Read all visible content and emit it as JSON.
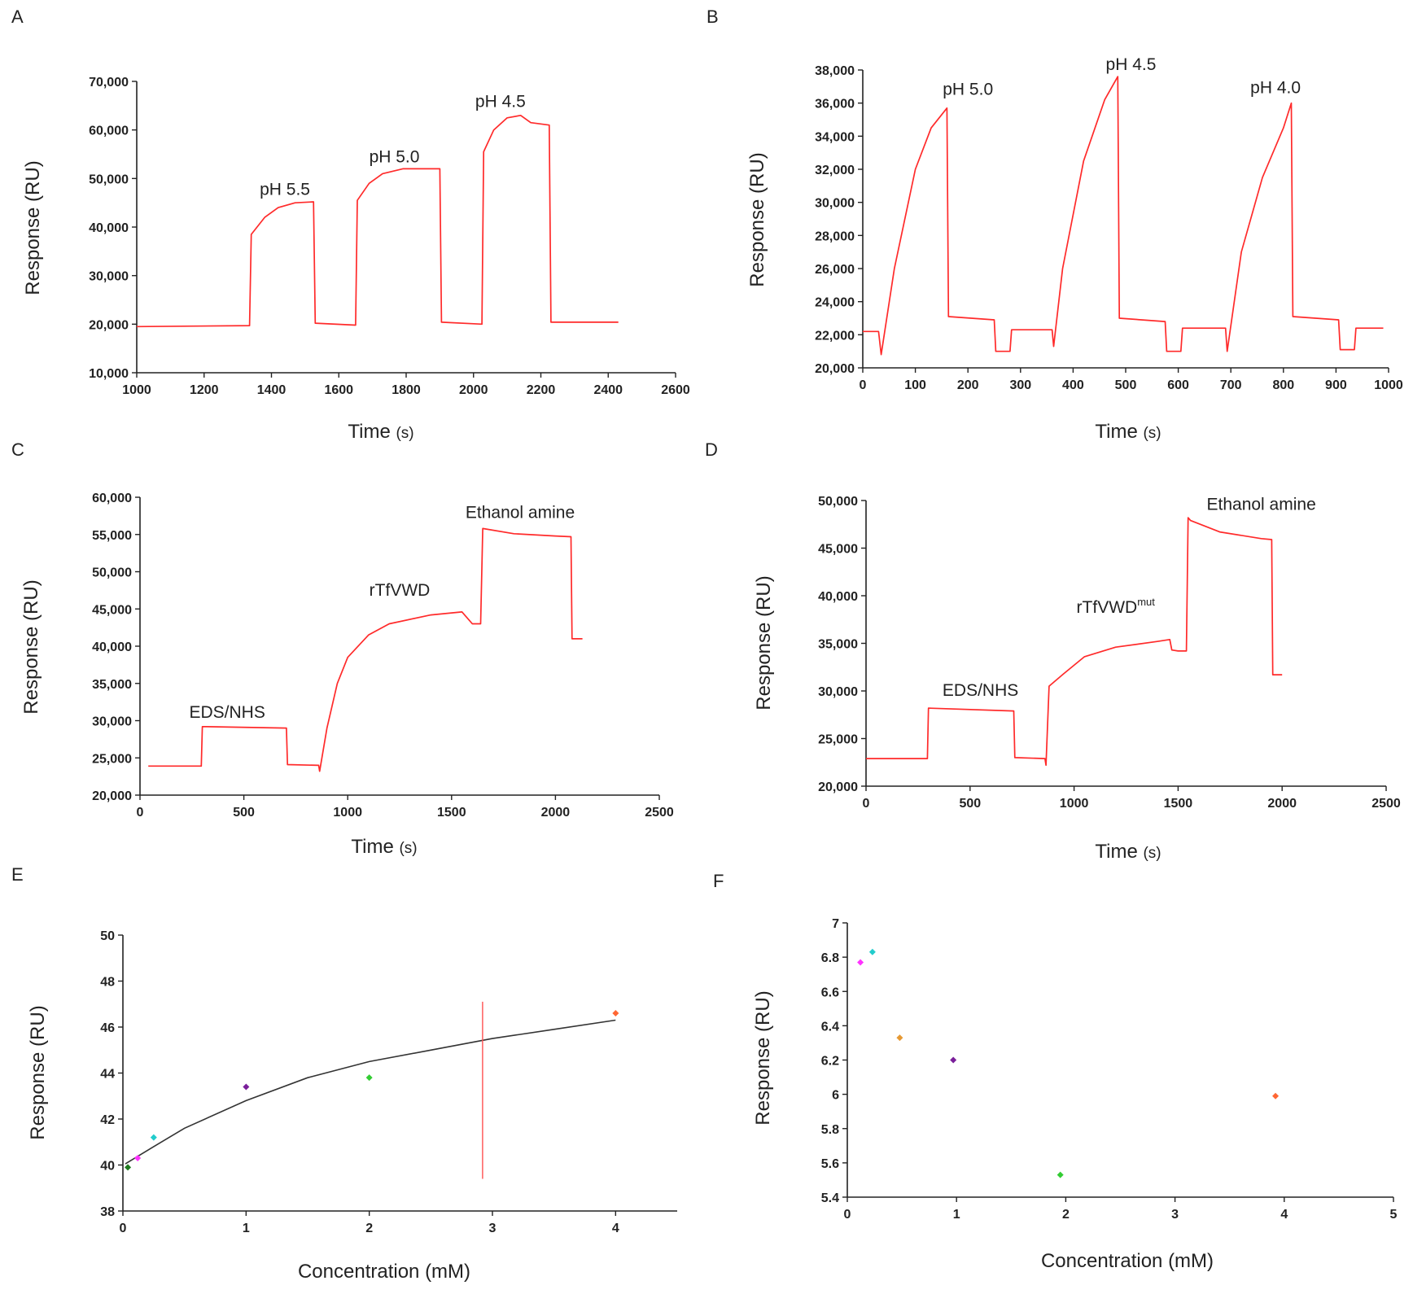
{
  "figure": {
    "panel_letters": [
      "A",
      "B",
      "C",
      "D",
      "E",
      "F"
    ]
  },
  "colors": {
    "trace": "#ff2a2a",
    "axis": "#222222",
    "fit": "#333333",
    "marker_line": "#ff5050"
  },
  "chart_data": [
    {
      "panel": "A",
      "type": "line",
      "title": "",
      "xlabel": "Time",
      "xunit": "(s)",
      "ylabel": "Response (RU)",
      "xlim": [
        1000,
        2600
      ],
      "ylim": [
        10000,
        70000
      ],
      "xticks": [
        1000,
        1200,
        1400,
        1600,
        1800,
        2000,
        2200,
        2400,
        2600
      ],
      "yticks": [
        10000,
        20000,
        30000,
        40000,
        50000,
        60000,
        70000
      ],
      "yticklabels": [
        "10,000",
        "20,000",
        "30,000",
        "40,000",
        "50,000",
        "60,000",
        "70,000"
      ],
      "annotations": [
        {
          "text": "pH 5.5",
          "x": 1440,
          "y": 46600
        },
        {
          "text": "pH 5.0",
          "x": 1765,
          "y": 53300
        },
        {
          "text": "pH 4.5",
          "x": 2080,
          "y": 64700
        }
      ],
      "series": [
        {
          "name": "sensorgram",
          "x": [
            1000,
            1335,
            1340,
            1380,
            1420,
            1470,
            1525,
            1530,
            1650,
            1655,
            1690,
            1730,
            1790,
            1900,
            1905,
            2025,
            2030,
            2060,
            2100,
            2140,
            2170,
            2225,
            2230,
            2430
          ],
          "y": [
            19500,
            19700,
            38500,
            42000,
            44000,
            45000,
            45200,
            20200,
            19800,
            45500,
            49000,
            51000,
            52000,
            52000,
            20400,
            20000,
            55500,
            60000,
            62500,
            63000,
            61500,
            61000,
            20400,
            20400
          ]
        }
      ]
    },
    {
      "panel": "B",
      "type": "line",
      "title": "",
      "xlabel": "Time",
      "xunit": "(s)",
      "ylabel": "Response (RU)",
      "xlim": [
        0,
        1000
      ],
      "ylim": [
        20000,
        38000
      ],
      "xticks": [
        0,
        100,
        200,
        300,
        400,
        500,
        600,
        700,
        800,
        900,
        1000
      ],
      "yticks": [
        20000,
        22000,
        24000,
        26000,
        28000,
        30000,
        32000,
        34000,
        36000,
        38000
      ],
      "yticklabels": [
        "20,000",
        "22,000",
        "24,000",
        "26,000",
        "28,000",
        "30,000",
        "32,000",
        "34,000",
        "36,000",
        "38,000"
      ],
      "annotations": [
        {
          "text": "pH 5.0",
          "x": 200,
          "y": 36500
        },
        {
          "text": "pH 4.5",
          "x": 510,
          "y": 38000
        },
        {
          "text": "pH 4.0",
          "x": 785,
          "y": 36600
        }
      ],
      "series": [
        {
          "name": "sensorgram",
          "x": [
            0,
            30,
            35,
            60,
            100,
            130,
            160,
            163,
            250,
            253,
            280,
            283,
            360,
            363,
            380,
            420,
            460,
            485,
            488,
            575,
            578,
            605,
            608,
            690,
            693,
            720,
            760,
            800,
            815,
            818,
            905,
            908,
            935,
            938,
            990
          ],
          "y": [
            22200,
            22200,
            20800,
            26000,
            32000,
            34500,
            35700,
            23100,
            22900,
            21000,
            21000,
            22300,
            22300,
            21300,
            26000,
            32500,
            36200,
            37600,
            23000,
            22800,
            21000,
            21000,
            22400,
            22400,
            21000,
            27000,
            31500,
            34500,
            36000,
            23100,
            22900,
            21100,
            21100,
            22400,
            22400
          ]
        }
      ]
    },
    {
      "panel": "C",
      "type": "line",
      "title": "",
      "xlabel": "Time",
      "xunit": "(s)",
      "ylabel": "Response (RU)",
      "xlim": [
        0,
        2500
      ],
      "ylim": [
        20000,
        60000
      ],
      "xticks": [
        0,
        500,
        1000,
        1500,
        2000,
        2500
      ],
      "yticks": [
        20000,
        25000,
        30000,
        35000,
        40000,
        45000,
        50000,
        55000,
        60000
      ],
      "yticklabels": [
        "20,000",
        "25,000",
        "30,000",
        "35,000",
        "40,000",
        "45,000",
        "50,000",
        "55,000",
        "60,000"
      ],
      "annotations": [
        {
          "text": "EDS/NHS",
          "x": 420,
          "y": 30400
        },
        {
          "text": "rTfVWD",
          "x": 1250,
          "y": 46800
        },
        {
          "text": "Ethanol amine",
          "x": 1830,
          "y": 57200
        }
      ],
      "series": [
        {
          "name": "sensorgram",
          "x": [
            40,
            295,
            300,
            705,
            710,
            860,
            865,
            900,
            950,
            1000,
            1100,
            1200,
            1400,
            1550,
            1600,
            1640,
            1650,
            1800,
            2000,
            2075,
            2080,
            2130
          ],
          "y": [
            23900,
            23900,
            29200,
            29000,
            24100,
            24000,
            23200,
            29000,
            35000,
            38500,
            41500,
            43000,
            44200,
            44600,
            43000,
            43000,
            55800,
            55100,
            54800,
            54700,
            41000,
            41000
          ]
        }
      ]
    },
    {
      "panel": "D",
      "type": "line",
      "title": "",
      "xlabel": "Time",
      "xunit": "(s)",
      "ylabel": "Response (RU)",
      "xlim": [
        0,
        2500
      ],
      "ylim": [
        20000,
        50000
      ],
      "xticks": [
        0,
        500,
        1000,
        1500,
        2000,
        2500
      ],
      "yticks": [
        20000,
        25000,
        30000,
        35000,
        40000,
        45000,
        50000
      ],
      "yticklabels": [
        "20,000",
        "25,000",
        "30,000",
        "35,000",
        "40,000",
        "45,000",
        "50,000"
      ],
      "annotations": [
        {
          "text": "EDS/NHS",
          "x": 550,
          "y": 29500
        },
        {
          "text": "rTfVWD",
          "sup": "mut",
          "x": 1200,
          "y": 38200
        },
        {
          "text": "Ethanol amine",
          "x": 1900,
          "y": 49000
        }
      ],
      "series": [
        {
          "name": "sensorgram",
          "x": [
            0,
            295,
            300,
            710,
            715,
            860,
            865,
            880,
            950,
            1050,
            1200,
            1400,
            1460,
            1470,
            1500,
            1540,
            1548,
            1560,
            1700,
            1900,
            1950,
            1955,
            2000
          ],
          "y": [
            22900,
            22900,
            28200,
            27900,
            23000,
            22900,
            22200,
            30500,
            31800,
            33600,
            34600,
            35200,
            35400,
            34300,
            34200,
            34200,
            48200,
            47900,
            46700,
            46000,
            45900,
            31700,
            31700
          ]
        }
      ]
    },
    {
      "panel": "E",
      "type": "scatter",
      "title": "",
      "xlabel": "Concentration (mM)",
      "ylabel": "Response (RU)",
      "xlim": [
        0,
        4.5
      ],
      "ylim": [
        38,
        50
      ],
      "xticks": [
        0,
        1,
        2,
        3,
        4
      ],
      "yticks": [
        38,
        40,
        42,
        44,
        46,
        48,
        50
      ],
      "points": [
        {
          "x": 0.04,
          "y": 39.9,
          "color": "#1f7a1f"
        },
        {
          "x": 0.12,
          "y": 40.3,
          "color": "#ff33ff"
        },
        {
          "x": 0.25,
          "y": 41.2,
          "color": "#22cccc"
        },
        {
          "x": 1.0,
          "y": 43.4,
          "color": "#7a1f9a"
        },
        {
          "x": 2.0,
          "y": 43.8,
          "color": "#33cc33"
        },
        {
          "x": 4.0,
          "y": 46.6,
          "color": "#ff6633"
        }
      ],
      "fit": {
        "model": "hyperbolic",
        "x": [
          0.02,
          0.25,
          0.5,
          1.0,
          1.5,
          2.0,
          2.5,
          3.0,
          3.5,
          4.0
        ],
        "y": [
          40.05,
          40.8,
          41.6,
          42.8,
          43.8,
          44.5,
          45.0,
          45.5,
          45.9,
          46.3
        ]
      },
      "vertical_marker": {
        "x": 2.92,
        "y_range": [
          39.4,
          47.1
        ]
      }
    },
    {
      "panel": "F",
      "type": "scatter",
      "title": "",
      "xlabel": "Concentration (mM)",
      "ylabel": "Response (RU)",
      "xlim": [
        0,
        5
      ],
      "ylim": [
        5.4,
        7
      ],
      "xticks": [
        0,
        1,
        2,
        3,
        4,
        5
      ],
      "yticks": [
        5.4,
        5.6,
        5.8,
        6,
        6.2,
        6.4,
        6.6,
        6.8,
        7
      ],
      "yticklabels": [
        "5.4",
        "5.6",
        "5.8",
        "6",
        "6.2",
        "6.4",
        "6.6",
        "6.8",
        "7"
      ],
      "points": [
        {
          "x": 0.12,
          "y": 6.77,
          "color": "#ff33ff"
        },
        {
          "x": 0.23,
          "y": 6.83,
          "color": "#22cccc"
        },
        {
          "x": 0.48,
          "y": 6.33,
          "color": "#e69933"
        },
        {
          "x": 0.97,
          "y": 6.2,
          "color": "#7a1f9a"
        },
        {
          "x": 1.95,
          "y": 5.53,
          "color": "#33cc33"
        },
        {
          "x": 3.92,
          "y": 5.99,
          "color": "#ff6633"
        }
      ]
    }
  ]
}
